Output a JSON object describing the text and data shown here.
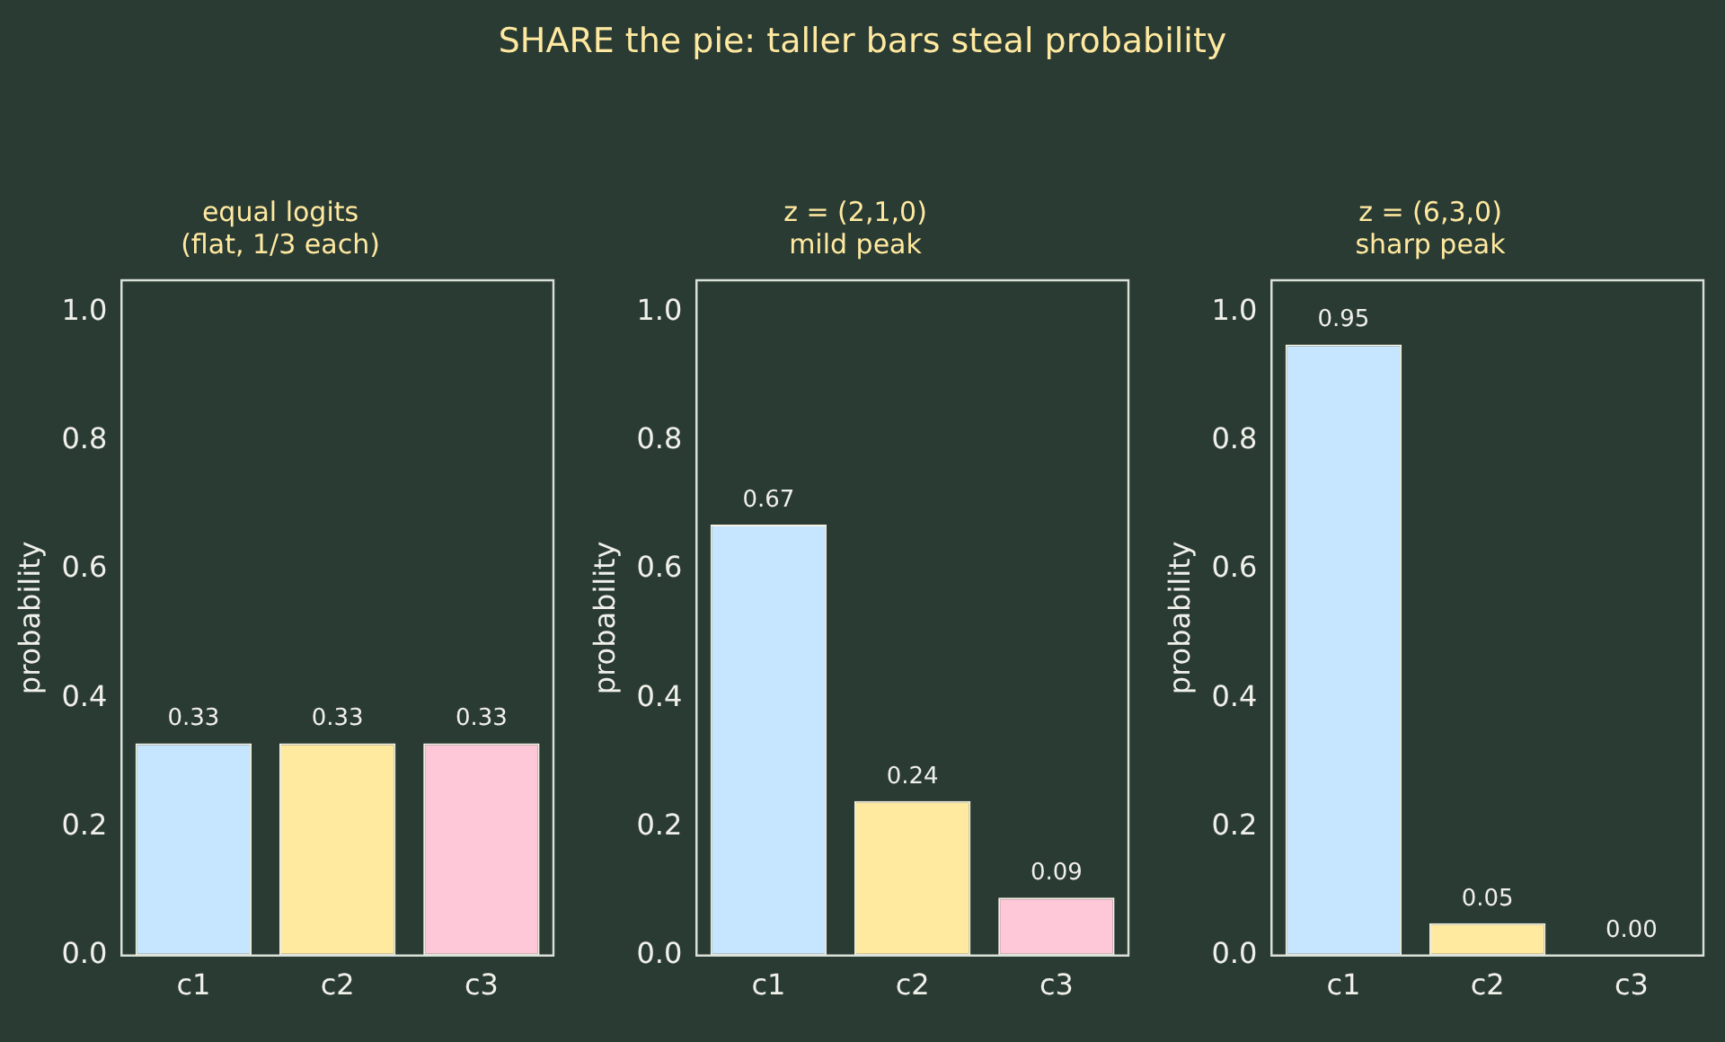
{
  "chart_data": [
    {
      "type": "bar",
      "annotations": [
        "SHARE the pie: taller bars steal probability"
      ],
      "title": "equal logits\n(flat, 1/3 each)",
      "ylabel": "probability",
      "categories": [
        "c1",
        "c2",
        "c3"
      ],
      "values": [
        0.33,
        0.33,
        0.33
      ],
      "colors": [
        "#c6e6ff",
        "#ffeaa0",
        "#ffc8d8"
      ],
      "value_labels": [
        "0.33",
        "0.33",
        "0.33"
      ],
      "ylim": [
        0,
        1.05
      ],
      "yticks": [
        {
          "value": 0,
          "label": "0.0"
        },
        {
          "value": 0.2,
          "label": "0.2"
        },
        {
          "value": 0.4,
          "label": "0.4"
        },
        {
          "value": 0.6,
          "label": "0.6"
        },
        {
          "value": 0.8,
          "label": "0.8"
        },
        {
          "value": 1,
          "label": "1.0"
        }
      ],
      "grid": false,
      "legend": false
    },
    {
      "type": "bar",
      "title": "z = (2,1,0)\nmild peak",
      "ylabel": "probability",
      "categories": [
        "c1",
        "c2",
        "c3"
      ],
      "values": [
        0.67,
        0.24,
        0.09
      ],
      "colors": [
        "#c6e6ff",
        "#ffeaa0",
        "#ffc8d8"
      ],
      "value_labels": [
        "0.67",
        "0.24",
        "0.09"
      ],
      "ylim": [
        0,
        1.05
      ],
      "yticks": [
        {
          "value": 0,
          "label": "0.0"
        },
        {
          "value": 0.2,
          "label": "0.2"
        },
        {
          "value": 0.4,
          "label": "0.4"
        },
        {
          "value": 0.6,
          "label": "0.6"
        },
        {
          "value": 0.8,
          "label": "0.8"
        },
        {
          "value": 1,
          "label": "1.0"
        }
      ],
      "grid": false,
      "legend": false
    },
    {
      "type": "bar",
      "title": "z = (6,3,0)\nsharp peak",
      "ylabel": "probability",
      "categories": [
        "c1",
        "c2",
        "c3"
      ],
      "values": [
        0.95,
        0.05,
        0
      ],
      "colors": [
        "#c6e6ff",
        "#ffeaa0",
        "#ffc8d8"
      ],
      "value_labels": [
        "0.95",
        "0.05",
        "0.00"
      ],
      "ylim": [
        0,
        1.05
      ],
      "yticks": [
        {
          "value": 0,
          "label": "0.0"
        },
        {
          "value": 0.2,
          "label": "0.2"
        },
        {
          "value": 0.4,
          "label": "0.4"
        },
        {
          "value": 0.6,
          "label": "0.6"
        },
        {
          "value": 0.8,
          "label": "0.8"
        },
        {
          "value": 1,
          "label": "1.0"
        }
      ],
      "grid": false,
      "legend": false
    }
  ]
}
